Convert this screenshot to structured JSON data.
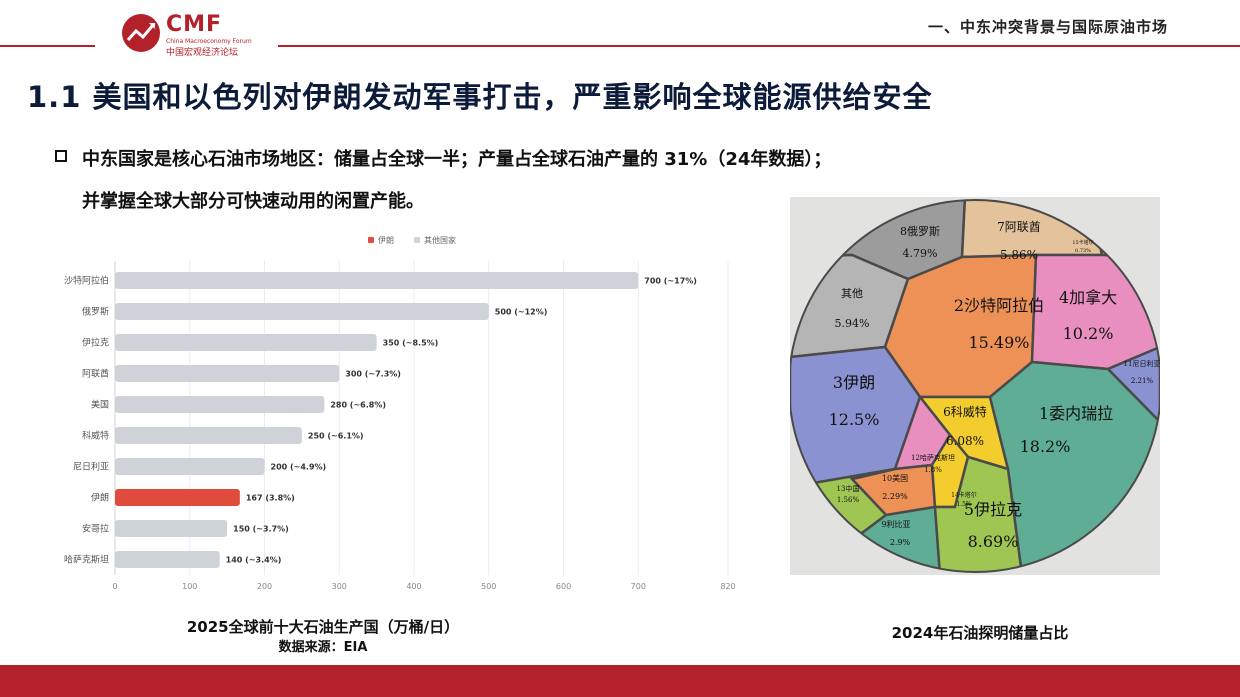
{
  "header": {
    "logo_text": "CMF",
    "logo_sub": "China Macroeconomy Forum",
    "logo_cn": "中国宏观经济论坛",
    "section_title": "一、中东冲突背景与国际原油市场"
  },
  "slide": {
    "title": "1.1 美国和以色列对伊朗发动军事打击，严重影响全球能源供给安全",
    "bullet_line1": "中东国家是核心石油市场地区：储量占全球一半；产量占全球石油产量的 31%（24年数据）；",
    "bullet_line2": "并掌握全球大部分可快速动用的闲置产能。"
  },
  "chart_data": {
    "type": "bar",
    "orientation": "horizontal",
    "categories": [
      "沙特阿拉伯",
      "俄罗斯",
      "伊拉克",
      "阿联酋",
      "美国",
      "科威特",
      "尼日利亚",
      "伊朗",
      "安哥拉",
      "哈萨克斯坦"
    ],
    "values": [
      700,
      500,
      350,
      300,
      280,
      250,
      200,
      167,
      150,
      140
    ],
    "data_labels": [
      "700 (~17%)",
      "500 (~12%)",
      "350 (~8.5%)",
      "300 (~7.3%)",
      "280 (~6.8%)",
      "250 (~6.1%)",
      "200 (~4.9%)",
      "167 (3.8%)",
      "150 (~3.7%)",
      "140 (~3.4%)"
    ],
    "highlight_index": 7,
    "legend": [
      {
        "name": "伊朗",
        "color": "#e04b3d"
      },
      {
        "name": "其他国家",
        "color": "#cfd3d9"
      }
    ],
    "legend_position": "top-center",
    "xlim": [
      0,
      820
    ],
    "xticks": [
      0,
      100,
      200,
      300,
      400,
      500,
      600,
      700,
      820
    ],
    "grid": true,
    "title": "2025全球前十大石油生产国（万桶/日）",
    "source": "数据来源：EIA"
  },
  "reserves_chart": {
    "caption": "2024年石油探明储量占比",
    "regions": [
      {
        "label": "1委内瑞拉",
        "pct": "18.2%",
        "color": "#5fad94"
      },
      {
        "label": "2沙特阿拉伯",
        "pct": "15.49%",
        "color": "#ee9156"
      },
      {
        "label": "3伊朗",
        "pct": "12.5%",
        "color": "#8a92d2"
      },
      {
        "label": "4加拿大",
        "pct": "10.2%",
        "color": "#e88fbf"
      },
      {
        "label": "5伊拉克",
        "pct": "8.69%",
        "color": "#9fc553"
      },
      {
        "label": "6科威特",
        "pct": "6.08%",
        "color": "#f3cc2d"
      },
      {
        "label": "7阿联酋",
        "pct": "5.86%",
        "color": "#e3c29c"
      },
      {
        "label": "8俄罗斯",
        "pct": "4.79%",
        "color": "#9c9c9c"
      },
      {
        "label": "其他",
        "pct": "5.94%",
        "color": "#b5b5b5"
      },
      {
        "label": "9利比亚",
        "pct": "2.9%",
        "color": "#5fad94"
      },
      {
        "label": "10美国",
        "pct": "2.29%",
        "color": "#ee9156"
      },
      {
        "label": "11尼日利亚",
        "pct": "2.21%",
        "color": "#8a92d2"
      },
      {
        "label": "12哈萨克斯坦",
        "pct": "1.8%",
        "color": "#e88fbf"
      },
      {
        "label": "13中国",
        "pct": "1.56%",
        "color": "#9fc553"
      },
      {
        "label": "14卡塔尔",
        "pct": "1.5%",
        "color": "#f3cc2d"
      },
      {
        "label": "15卡塔尔",
        "pct": "0.73%",
        "color": "#f3cc2d"
      }
    ]
  }
}
